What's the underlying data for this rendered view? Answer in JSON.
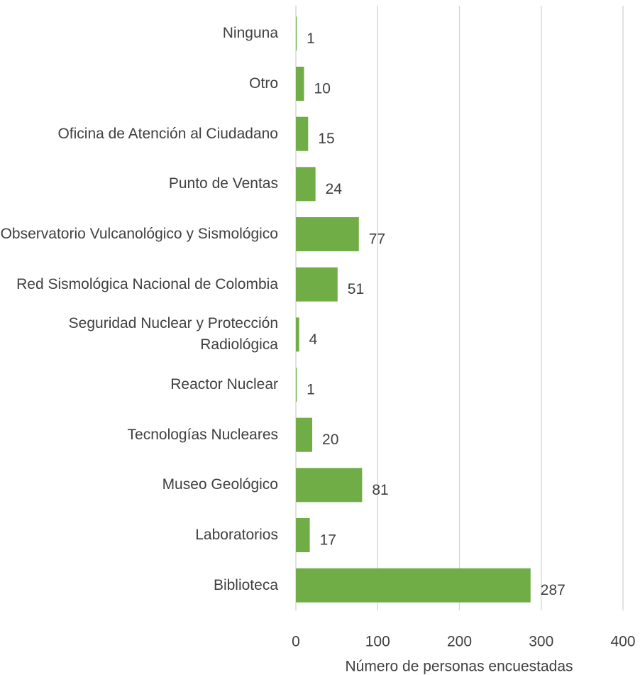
{
  "chart_data": {
    "type": "bar",
    "orientation": "horizontal",
    "x_label": "Número de personas encuestadas",
    "categories": [
      "Ninguna",
      "Otro",
      "Oficina de Atención al Ciudadano",
      "Punto de Ventas",
      "Observatorio Vulcanológico y Sismológico",
      "Red Sismológica Nacional de Colombia",
      "Seguridad Nuclear y Protección Radiológica",
      "Reactor Nuclear",
      "Tecnologías Nucleares",
      "Museo Geológico",
      "Laboratorios",
      "Biblioteca"
    ],
    "values": [
      1,
      10,
      15,
      24,
      77,
      51,
      4,
      1,
      20,
      81,
      17,
      287
    ],
    "color": "#70ad47",
    "xlim": [
      0,
      400
    ],
    "xticks": [
      0,
      100,
      200,
      300,
      400
    ],
    "grid": true
  }
}
